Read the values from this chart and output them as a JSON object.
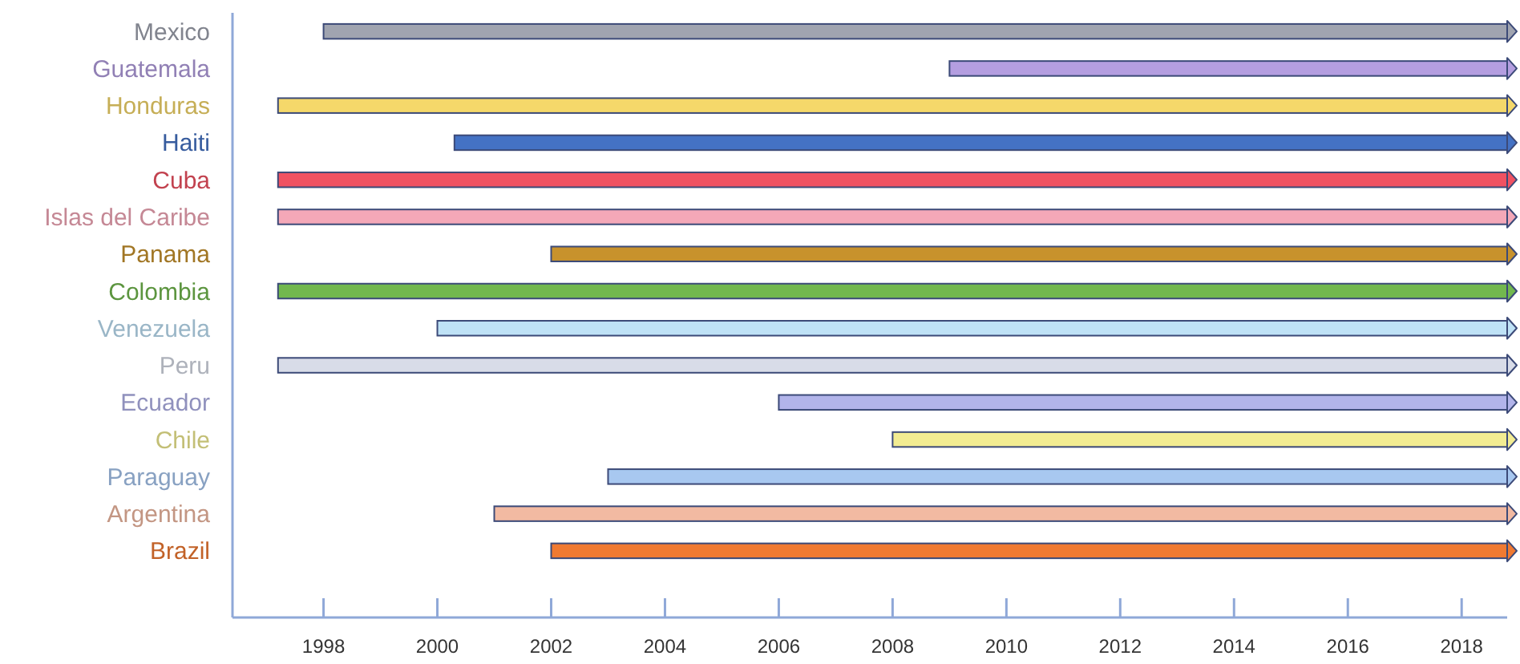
{
  "chart_data": {
    "type": "bar",
    "orientation": "horizontal",
    "categories": [
      "Mexico",
      "Guatemala",
      "Honduras",
      "Haiti",
      "Cuba",
      "Islas del Caribe",
      "Panama",
      "Colombia",
      "Venezuela",
      "Peru",
      "Ecuador",
      "Chile",
      "Paraguay",
      "Argentina",
      "Brazil"
    ],
    "base": [
      1998,
      2009,
      1997.2,
      2000.3,
      1997.2,
      1997.2,
      2002,
      1997.2,
      2000,
      1997.2,
      2006,
      2008,
      2003,
      2001,
      2002
    ],
    "values": [
      20.8,
      9.8,
      21.6,
      18.5,
      21.6,
      21.6,
      16.8,
      21.6,
      18.8,
      21.6,
      12.8,
      10.8,
      15.8,
      17.8,
      16.8
    ],
    "colors": [
      "#a0a4b0",
      "#b49ee0",
      "#f5d86a",
      "#4472c4",
      "#f05262",
      "#f4a8b8",
      "#c8922c",
      "#72b84e",
      "#bfe2f6",
      "#d8dce8",
      "#b2b4ea",
      "#f2ec92",
      "#a8c8f0",
      "#f2baa2",
      "#f07a32"
    ],
    "xlim": [
      1996.4,
      2018.8
    ],
    "xticks": [
      1998,
      2000,
      2002,
      2004,
      2006,
      2008,
      2010,
      2012,
      2014,
      2016,
      2018
    ],
    "grid": false
  }
}
